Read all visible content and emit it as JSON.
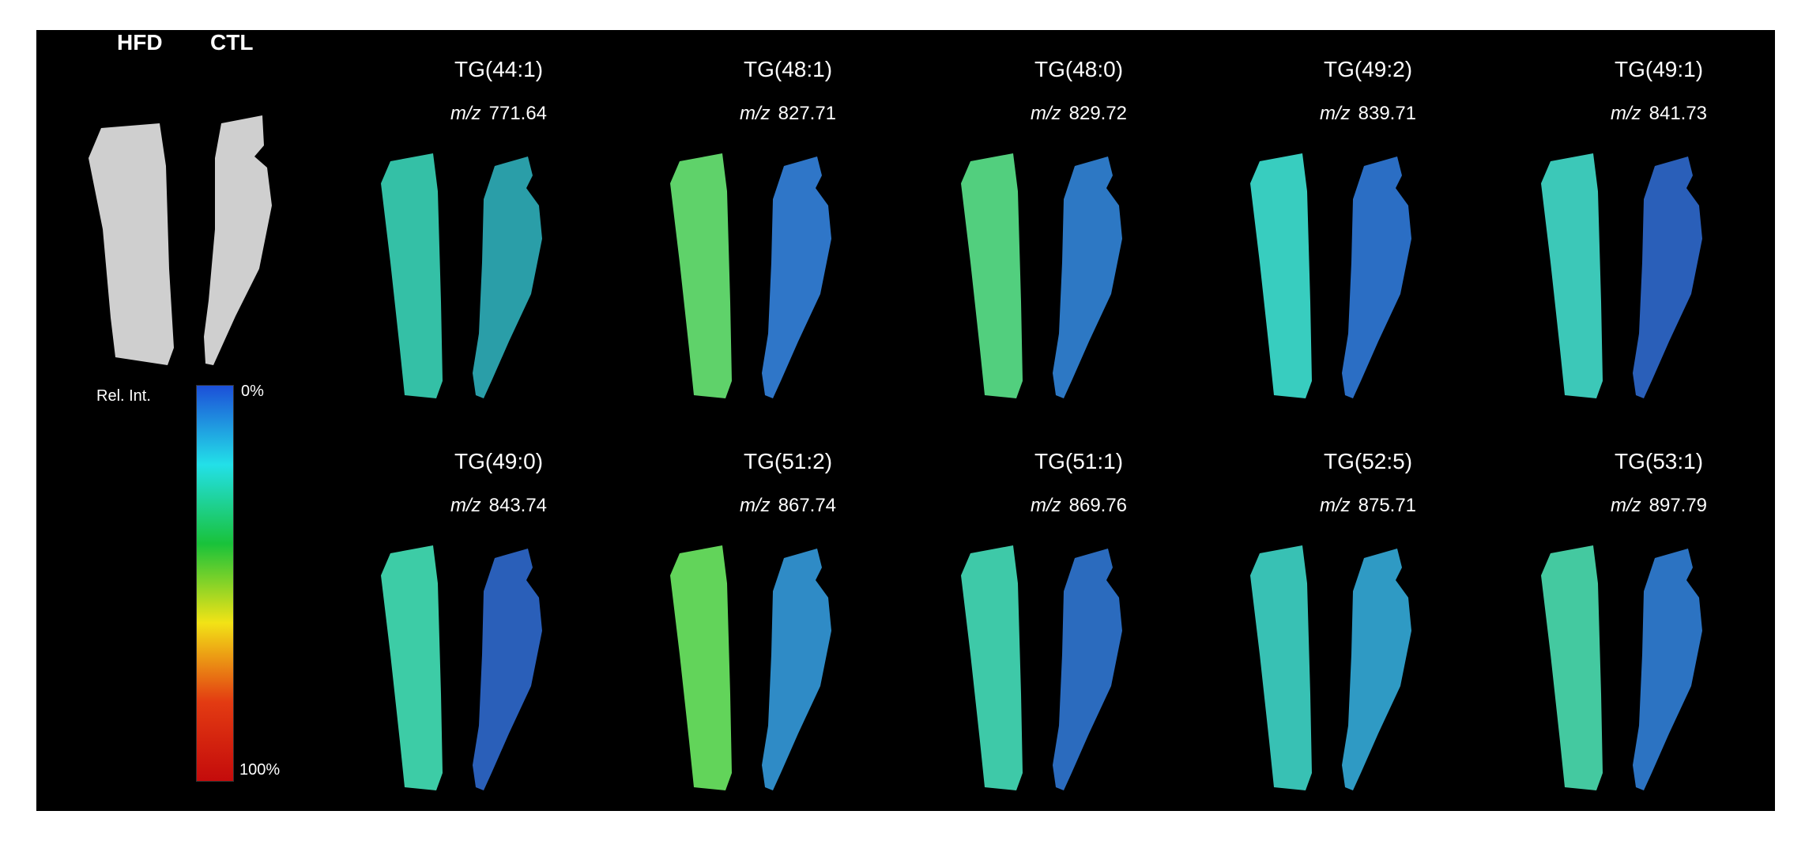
{
  "reference": {
    "labels": [
      "HFD",
      "CTL"
    ],
    "silhouette_color": "#cfcfcf"
  },
  "legend": {
    "label": "Rel. Int.",
    "top_text": "0%",
    "bottom_text": "100%",
    "gradient_stops": [
      "#1c4fd8",
      "#23e0e8",
      "#19c23a",
      "#f2e316",
      "#e33b12",
      "#c40b0b"
    ]
  },
  "mz_prefix": "m/z",
  "panels": [
    {
      "title": "TG(44:1)",
      "mz": "771.64",
      "hfd_color": "#34c0a6",
      "ctl_color": "#2a9ea8"
    },
    {
      "title": "TG(48:1)",
      "mz": "827.71",
      "hfd_color": "#5fd26a",
      "ctl_color": "#2f76c8"
    },
    {
      "title": "TG(48:0)",
      "mz": "829.72",
      "hfd_color": "#52cf7e",
      "ctl_color": "#2d78c4"
    },
    {
      "title": "TG(49:2)",
      "mz": "839.71",
      "hfd_color": "#38cdbf",
      "ctl_color": "#2b6ec4"
    },
    {
      "title": "TG(49:1)",
      "mz": "841.73",
      "hfd_color": "#3cc8b8",
      "ctl_color": "#2a5fb9"
    },
    {
      "title": "TG(49:0)",
      "mz": "843.74",
      "hfd_color": "#3dcca6",
      "ctl_color": "#2a5fb9"
    },
    {
      "title": "TG(51:2)",
      "mz": "867.74",
      "hfd_color": "#62d45a",
      "ctl_color": "#2f8bc6"
    },
    {
      "title": "TG(51:1)",
      "mz": "869.76",
      "hfd_color": "#3ec9a8",
      "ctl_color": "#2b6bbe"
    },
    {
      "title": "TG(52:5)",
      "mz": "875.71",
      "hfd_color": "#38c1b4",
      "ctl_color": "#2f9ac4"
    },
    {
      "title": "TG(53:1)",
      "mz": "897.79",
      "hfd_color": "#44c9a0",
      "ctl_color": "#2c73c2"
    }
  ]
}
